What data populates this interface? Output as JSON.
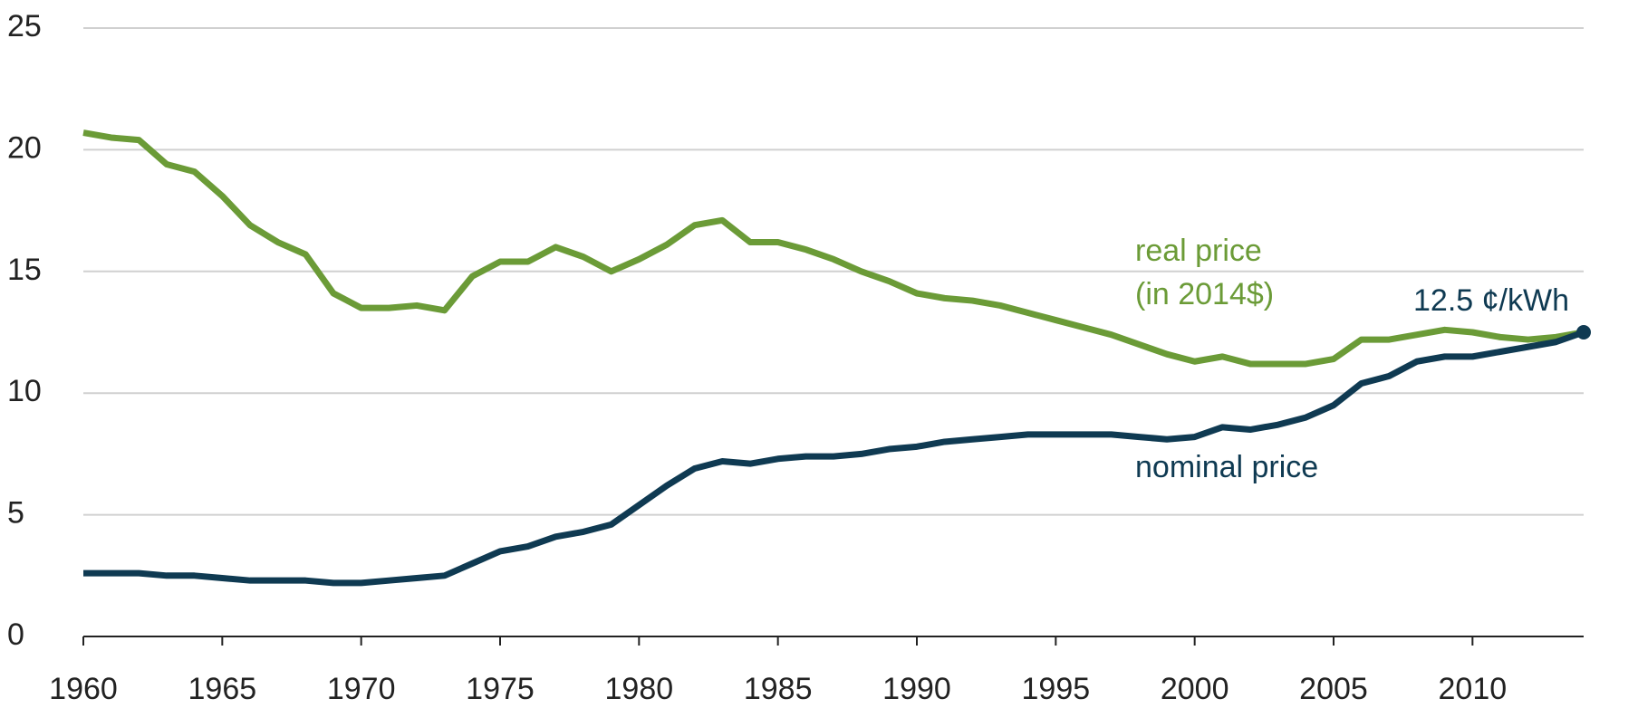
{
  "chart_data": {
    "type": "line",
    "x": [
      1960,
      1961,
      1962,
      1963,
      1964,
      1965,
      1966,
      1967,
      1968,
      1969,
      1970,
      1971,
      1972,
      1973,
      1974,
      1975,
      1976,
      1977,
      1978,
      1979,
      1980,
      1981,
      1982,
      1983,
      1984,
      1985,
      1986,
      1987,
      1988,
      1989,
      1990,
      1991,
      1992,
      1993,
      1994,
      1995,
      1996,
      1997,
      1998,
      1999,
      2000,
      2001,
      2002,
      2003,
      2004,
      2005,
      2006,
      2007,
      2008,
      2009,
      2010,
      2011,
      2012,
      2013,
      2014
    ],
    "series": [
      {
        "name": "real price",
        "color": "#6b9b37",
        "values": [
          20.7,
          20.5,
          20.4,
          19.4,
          19.1,
          18.1,
          16.9,
          16.2,
          15.7,
          14.1,
          13.5,
          13.5,
          13.6,
          13.4,
          14.8,
          15.4,
          15.4,
          16.0,
          15.6,
          15.0,
          15.5,
          16.1,
          16.9,
          17.1,
          16.2,
          16.2,
          15.9,
          15.5,
          15.0,
          14.6,
          14.1,
          13.9,
          13.8,
          13.6,
          13.3,
          13.0,
          12.7,
          12.4,
          12.0,
          11.6,
          11.3,
          11.5,
          11.2,
          11.2,
          11.2,
          11.4,
          12.2,
          12.2,
          12.4,
          12.6,
          12.5,
          12.3,
          12.2,
          12.3,
          12.5
        ]
      },
      {
        "name": "nominal price",
        "color": "#0f3a52",
        "values": [
          2.6,
          2.6,
          2.6,
          2.5,
          2.5,
          2.4,
          2.3,
          2.3,
          2.3,
          2.2,
          2.2,
          2.3,
          2.4,
          2.5,
          3.0,
          3.5,
          3.7,
          4.1,
          4.3,
          4.6,
          5.4,
          6.2,
          6.9,
          7.2,
          7.1,
          7.3,
          7.4,
          7.4,
          7.5,
          7.7,
          7.8,
          8.0,
          8.1,
          8.2,
          8.3,
          8.3,
          8.3,
          8.3,
          8.2,
          8.1,
          8.2,
          8.6,
          8.5,
          8.7,
          9.0,
          9.5,
          10.4,
          10.7,
          11.3,
          11.5,
          11.5,
          11.7,
          11.9,
          12.1,
          12.5
        ]
      }
    ],
    "annotations": [
      "real price",
      "(in 2014$)",
      "nominal price",
      "12.5 ¢/kWh"
    ],
    "xlim": [
      1960,
      2014
    ],
    "xticks": [
      1960,
      1965,
      1970,
      1975,
      1980,
      1985,
      1990,
      1995,
      2000,
      2005,
      2010
    ],
    "ylim": [
      0,
      25
    ],
    "yticks": [
      0,
      5,
      10,
      15,
      20,
      25
    ],
    "grid": true
  }
}
